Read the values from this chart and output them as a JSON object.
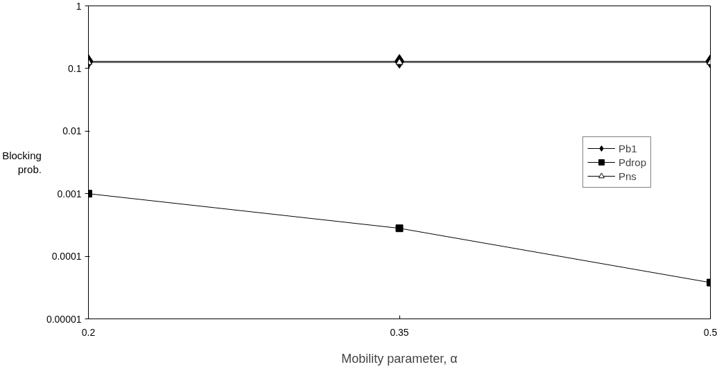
{
  "chart_data": {
    "type": "line",
    "xlabel": "Mobility parameter, α",
    "ylabel": "Blocking prob.",
    "x": [
      0.2,
      0.35,
      0.5
    ],
    "xlim": [
      0.2,
      0.5
    ],
    "xticks": [
      0.2,
      0.35,
      0.5
    ],
    "ylim": [
      1e-05,
      1
    ],
    "yticks": [
      {
        "value": 1e-05,
        "label": "0.00001"
      },
      {
        "value": 0.0001,
        "label": "0.0001"
      },
      {
        "value": 0.001,
        "label": "0.001"
      },
      {
        "value": 0.01,
        "label": "0.01"
      },
      {
        "value": 0.1,
        "label": "0.1"
      },
      {
        "value": 1,
        "label": "1"
      }
    ],
    "log": "y",
    "grid": false,
    "legend": "right",
    "series": [
      {
        "name": "Pb1",
        "color": "#000000",
        "marker": "diamond",
        "values": [
          0.13,
          0.13,
          0.13
        ]
      },
      {
        "name": "Pdrop",
        "color": "#000000",
        "marker": "square",
        "values": [
          0.001,
          0.00028,
          3.8e-05
        ]
      },
      {
        "name": "Pns",
        "color": "#000000",
        "marker": "triangle",
        "values": [
          0.125,
          0.125,
          0.125
        ]
      }
    ]
  }
}
